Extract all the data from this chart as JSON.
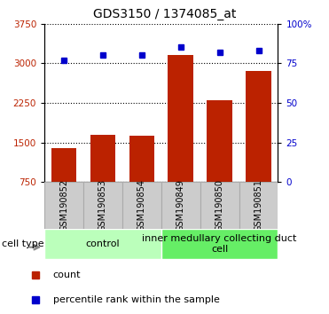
{
  "title": "GDS3150 / 1374085_at",
  "samples": [
    "GSM190852",
    "GSM190853",
    "GSM190854",
    "GSM190849",
    "GSM190850",
    "GSM190851"
  ],
  "counts": [
    1400,
    1650,
    1620,
    3150,
    2300,
    2850
  ],
  "percentiles": [
    77,
    80,
    80,
    85,
    82,
    83
  ],
  "bar_color": "#bb2200",
  "percentile_color": "#0000cc",
  "ylim": [
    750,
    3750
  ],
  "yticks": [
    750,
    1500,
    2250,
    3000,
    3750
  ],
  "ylim_right": [
    0,
    100
  ],
  "yticks_right": [
    0,
    25,
    50,
    75,
    100
  ],
  "ytick_labels_right": [
    "0",
    "25",
    "50",
    "75",
    "100%"
  ],
  "gray_box_color": "#cccccc",
  "gray_box_edge": "#aaaaaa",
  "groups": [
    {
      "label": "control",
      "start": 0,
      "end": 3,
      "color": "#bbffbb"
    },
    {
      "label": "inner medullary collecting duct\ncell",
      "start": 3,
      "end": 6,
      "color": "#66ee66"
    }
  ],
  "cell_type_label": "cell type",
  "legend_count_label": "count",
  "legend_pct_label": "percentile rank within the sample",
  "title_fontsize": 10,
  "tick_label_fontsize": 7.5,
  "sample_label_fontsize": 7,
  "group_label_fontsize": 8,
  "legend_fontsize": 8,
  "bar_width": 0.65
}
